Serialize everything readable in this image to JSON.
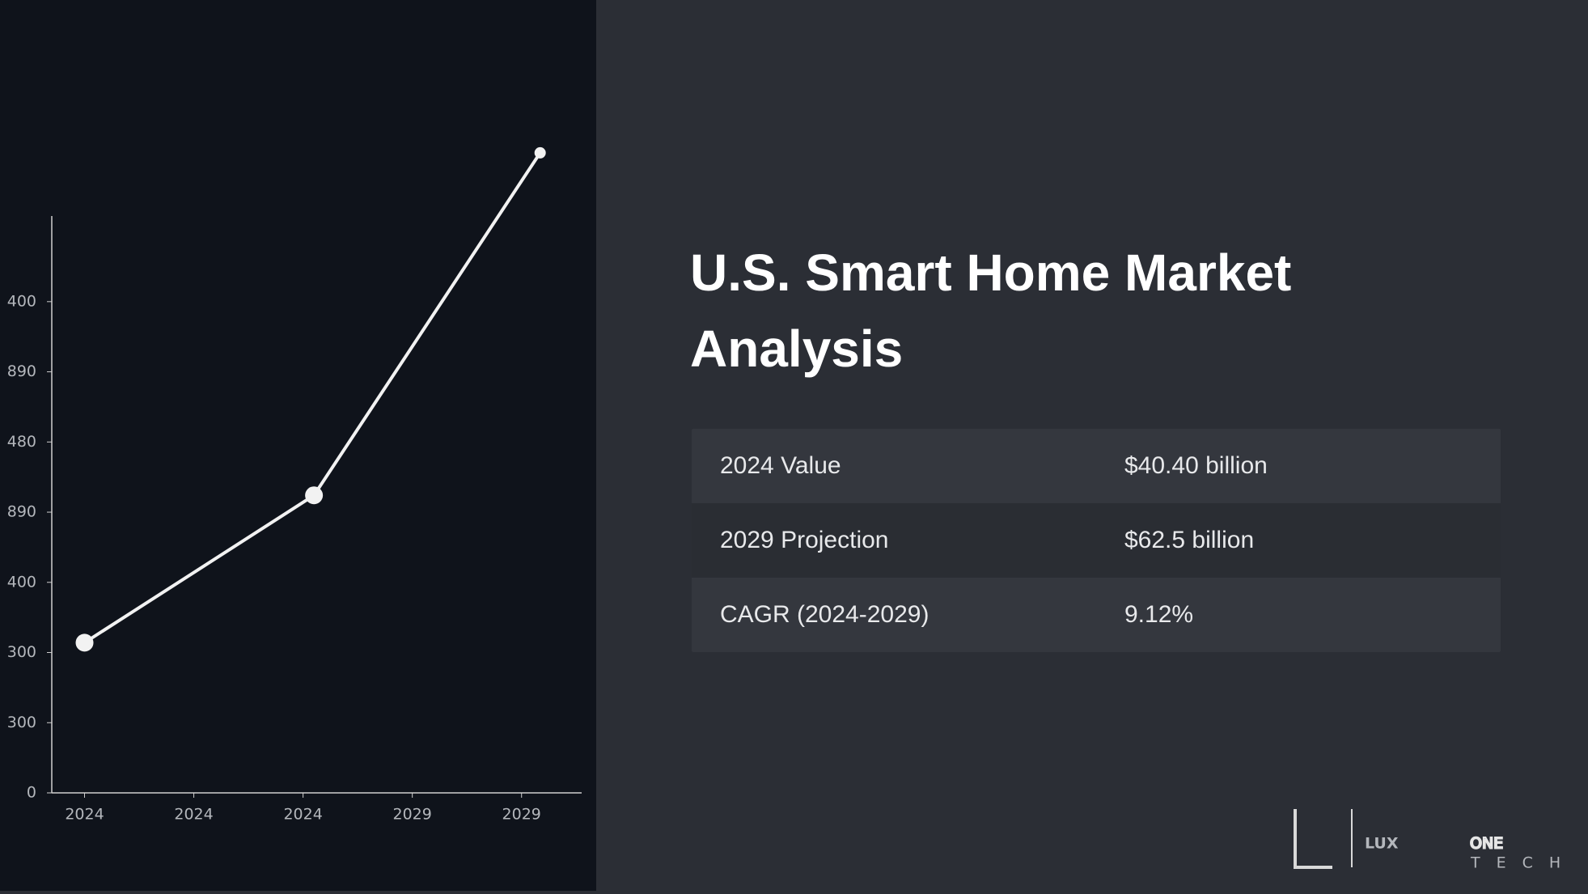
{
  "chart_data": {
    "type": "line",
    "x": [
      0,
      2.1,
      4.17
    ],
    "series": [
      {
        "color": "#f2f2f2",
        "values": [
          214,
          424,
          912
        ]
      }
    ],
    "xlim": [
      -0.3,
      4.55
    ],
    "xticks": [
      {
        "value": 0,
        "label": "2024"
      },
      {
        "value": 1,
        "label": "2024"
      },
      {
        "value": 2,
        "label": "2024"
      },
      {
        "value": 3,
        "label": "2029"
      },
      {
        "value": 4,
        "label": "2029"
      }
    ],
    "ylim": [
      0,
      822
    ],
    "yticks": [
      0,
      {
        "value": 100,
        "label": "300"
      },
      {
        "value": 200,
        "label": "300"
      },
      {
        "value": 300,
        "label": "400"
      },
      {
        "value": 400,
        "label": "890"
      },
      {
        "value": 500,
        "label": "480"
      },
      {
        "value": 600,
        "label": "890"
      },
      {
        "value": 700,
        "label": "400"
      }
    ]
  },
  "header": {
    "title": "U.S. Smart Home Market Analysis"
  },
  "table": {
    "rows": [
      [
        "2024 Value",
        "$40.40 billion"
      ],
      [
        "2029 Projection",
        "$62.5 billion"
      ],
      [
        "CAGR (2024-2029)",
        "9.12%"
      ]
    ]
  },
  "logo": {
    "brand": "LUX",
    "brand2": "ONE",
    "tagline": "TECH"
  }
}
